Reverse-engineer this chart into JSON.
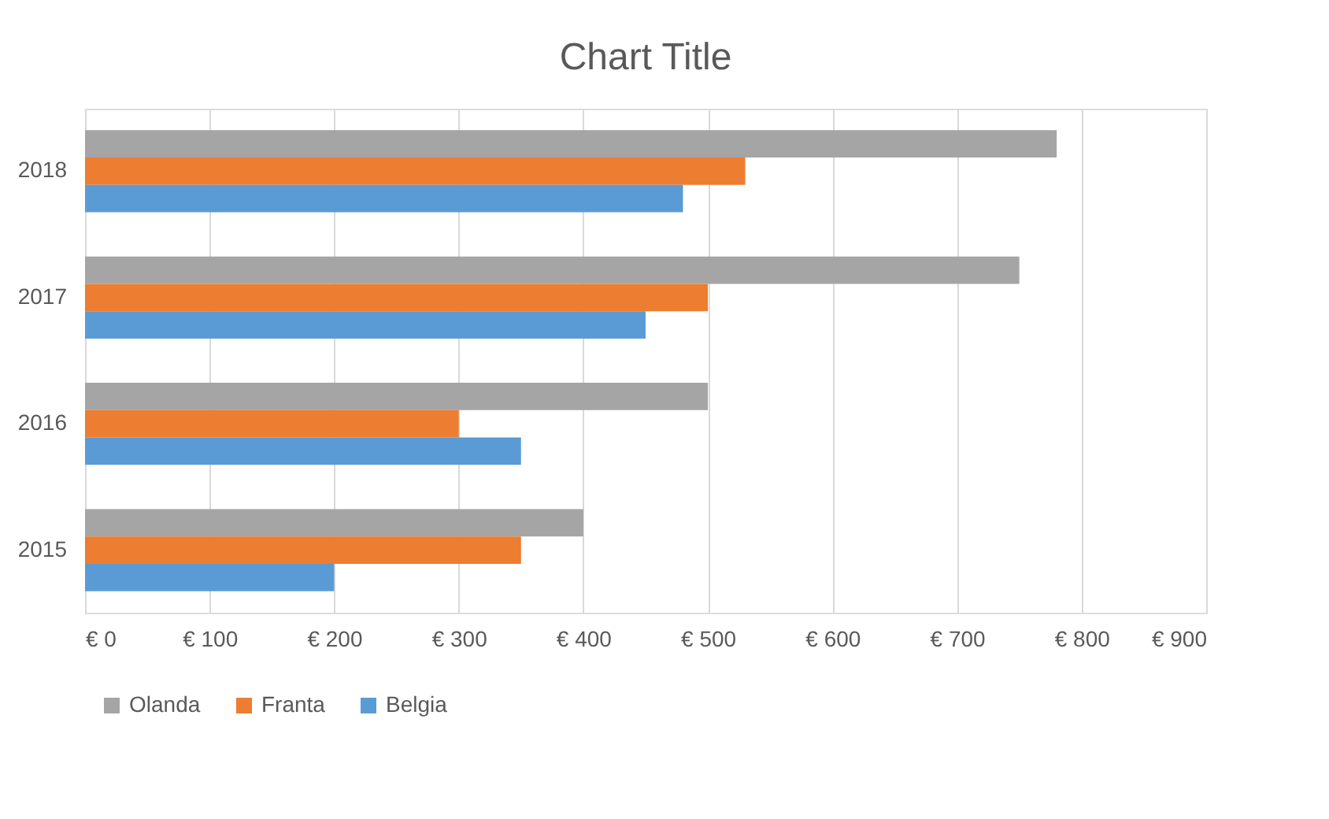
{
  "chart_data": {
    "type": "bar",
    "orientation": "horizontal",
    "title": "Chart Title",
    "categories": [
      "2018",
      "2017",
      "2016",
      "2015"
    ],
    "series": [
      {
        "name": "Olanda",
        "color": "#a5a5a5",
        "values": [
          780,
          750,
          500,
          400
        ]
      },
      {
        "name": "Franta",
        "color": "#ed7d31",
        "values": [
          530,
          500,
          300,
          350
        ]
      },
      {
        "name": "Belgia",
        "color": "#5b9bd5",
        "values": [
          480,
          450,
          350,
          200
        ]
      }
    ],
    "xlim": [
      0,
      900
    ],
    "xticks": [
      {
        "value": 0,
        "label": "€ 0"
      },
      {
        "value": 100,
        "label": "€ 100"
      },
      {
        "value": 200,
        "label": "€ 200"
      },
      {
        "value": 300,
        "label": "€ 300"
      },
      {
        "value": 400,
        "label": "€ 400"
      },
      {
        "value": 500,
        "label": "€ 500"
      },
      {
        "value": 600,
        "label": "€ 600"
      },
      {
        "value": 700,
        "label": "€ 700"
      },
      {
        "value": 800,
        "label": "€ 800"
      },
      {
        "value": 900,
        "label": "€ 900"
      }
    ],
    "grid": "x",
    "legend": "bottom"
  }
}
